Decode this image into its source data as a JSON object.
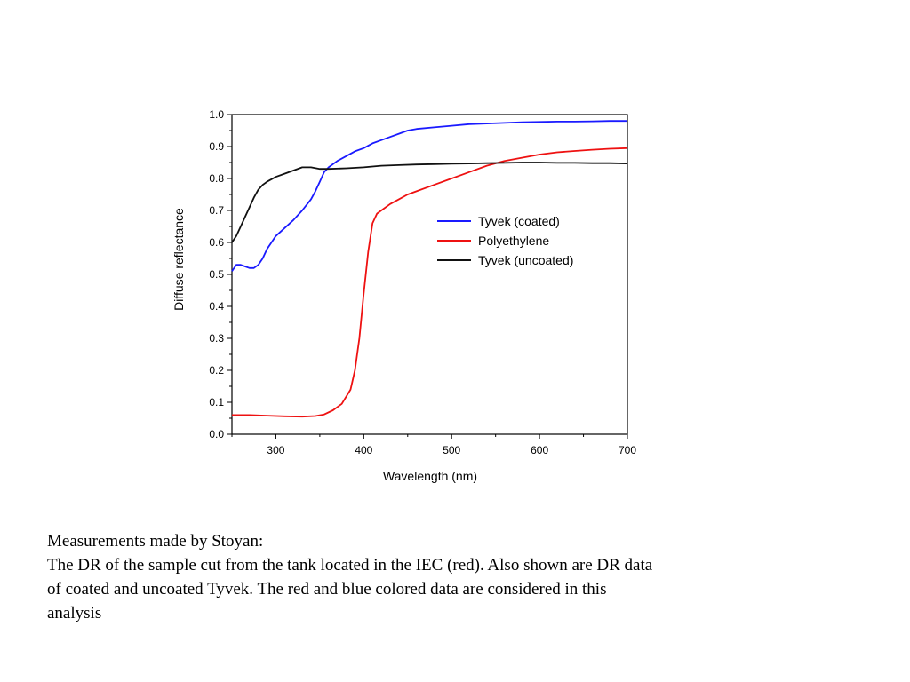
{
  "chart_data": {
    "type": "line",
    "title": "",
    "xlabel": "Wavelength (nm)",
    "ylabel": "Diffuse reflectance",
    "xlim": [
      250,
      700
    ],
    "ylim": [
      0.0,
      1.0
    ],
    "x_ticks": [
      300,
      400,
      500,
      600,
      700
    ],
    "y_ticks": [
      "0.0",
      "0.1",
      "0.2",
      "0.3",
      "0.4",
      "0.5",
      "0.6",
      "0.7",
      "0.8",
      "0.9",
      "1.0"
    ],
    "grid": false,
    "legend_position": "center-right",
    "series": [
      {
        "name": "Tyvek (coated)",
        "color": "#1a1aff",
        "points": [
          [
            250,
            0.51
          ],
          [
            255,
            0.53
          ],
          [
            260,
            0.53
          ],
          [
            265,
            0.525
          ],
          [
            270,
            0.52
          ],
          [
            275,
            0.52
          ],
          [
            280,
            0.53
          ],
          [
            285,
            0.55
          ],
          [
            290,
            0.58
          ],
          [
            295,
            0.6
          ],
          [
            300,
            0.62
          ],
          [
            310,
            0.645
          ],
          [
            320,
            0.67
          ],
          [
            330,
            0.7
          ],
          [
            340,
            0.735
          ],
          [
            345,
            0.76
          ],
          [
            350,
            0.79
          ],
          [
            355,
            0.82
          ],
          [
            360,
            0.835
          ],
          [
            370,
            0.855
          ],
          [
            380,
            0.87
          ],
          [
            390,
            0.885
          ],
          [
            400,
            0.895
          ],
          [
            410,
            0.91
          ],
          [
            420,
            0.92
          ],
          [
            430,
            0.93
          ],
          [
            440,
            0.94
          ],
          [
            450,
            0.95
          ],
          [
            460,
            0.955
          ],
          [
            480,
            0.96
          ],
          [
            500,
            0.965
          ],
          [
            520,
            0.97
          ],
          [
            540,
            0.972
          ],
          [
            560,
            0.974
          ],
          [
            580,
            0.976
          ],
          [
            600,
            0.977
          ],
          [
            620,
            0.978
          ],
          [
            640,
            0.978
          ],
          [
            660,
            0.979
          ],
          [
            680,
            0.98
          ],
          [
            700,
            0.98
          ]
        ]
      },
      {
        "name": "Polyethylene",
        "color": "#ee1111",
        "points": [
          [
            250,
            0.06
          ],
          [
            270,
            0.06
          ],
          [
            290,
            0.058
          ],
          [
            310,
            0.056
          ],
          [
            330,
            0.055
          ],
          [
            345,
            0.057
          ],
          [
            355,
            0.062
          ],
          [
            365,
            0.075
          ],
          [
            375,
            0.095
          ],
          [
            385,
            0.14
          ],
          [
            390,
            0.2
          ],
          [
            395,
            0.3
          ],
          [
            400,
            0.44
          ],
          [
            405,
            0.57
          ],
          [
            410,
            0.66
          ],
          [
            415,
            0.69
          ],
          [
            420,
            0.7
          ],
          [
            430,
            0.72
          ],
          [
            440,
            0.735
          ],
          [
            450,
            0.75
          ],
          [
            460,
            0.76
          ],
          [
            480,
            0.78
          ],
          [
            500,
            0.8
          ],
          [
            520,
            0.82
          ],
          [
            540,
            0.84
          ],
          [
            560,
            0.855
          ],
          [
            580,
            0.865
          ],
          [
            600,
            0.875
          ],
          [
            620,
            0.882
          ],
          [
            640,
            0.886
          ],
          [
            660,
            0.89
          ],
          [
            680,
            0.893
          ],
          [
            700,
            0.895
          ]
        ]
      },
      {
        "name": "Tyvek (uncoated)",
        "color": "#111111",
        "points": [
          [
            250,
            0.6
          ],
          [
            255,
            0.62
          ],
          [
            260,
            0.65
          ],
          [
            265,
            0.68
          ],
          [
            270,
            0.71
          ],
          [
            275,
            0.74
          ],
          [
            280,
            0.765
          ],
          [
            285,
            0.78
          ],
          [
            290,
            0.79
          ],
          [
            300,
            0.805
          ],
          [
            310,
            0.815
          ],
          [
            320,
            0.825
          ],
          [
            330,
            0.835
          ],
          [
            340,
            0.835
          ],
          [
            350,
            0.83
          ],
          [
            360,
            0.83
          ],
          [
            380,
            0.832
          ],
          [
            400,
            0.835
          ],
          [
            420,
            0.84
          ],
          [
            440,
            0.842
          ],
          [
            460,
            0.844
          ],
          [
            480,
            0.845
          ],
          [
            500,
            0.846
          ],
          [
            520,
            0.847
          ],
          [
            540,
            0.848
          ],
          [
            560,
            0.849
          ],
          [
            580,
            0.85
          ],
          [
            600,
            0.85
          ],
          [
            620,
            0.849
          ],
          [
            640,
            0.849
          ],
          [
            660,
            0.848
          ],
          [
            680,
            0.848
          ],
          [
            700,
            0.847
          ]
        ]
      }
    ]
  },
  "caption": {
    "line1": "Measurements made by Stoyan:",
    "line2": "The DR of the sample cut from the tank located in the IEC (red). Also shown are DR data",
    "line3": "of coated and uncoated Tyvek. The red and blue colored data are considered in this",
    "line4": "analysis"
  }
}
